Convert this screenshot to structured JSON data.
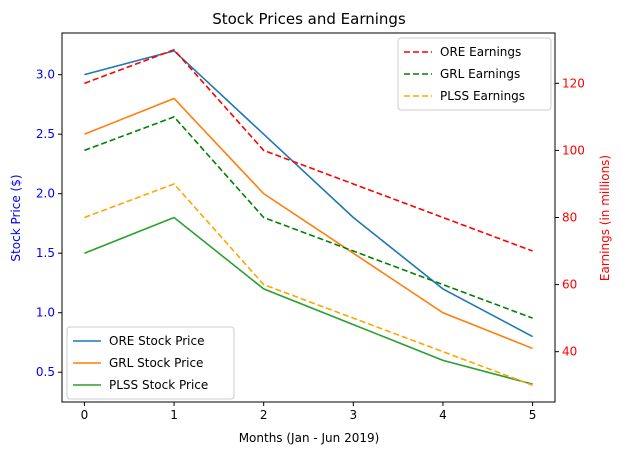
{
  "chart_data": {
    "type": "line",
    "title": "Stock Prices and Earnings",
    "xlabel": "Months (Jan - Jun 2019)",
    "ylabel": "Stock Price ($)",
    "y2label": "Earnings (in millions)",
    "x": [
      0,
      1,
      2,
      3,
      4,
      5
    ],
    "xlim": [
      -0.25,
      5.25
    ],
    "ylim": [
      0.25,
      3.35
    ],
    "y2lim": [
      25,
      135
    ],
    "yticks": [
      0.5,
      1.0,
      1.5,
      2.0,
      2.5,
      3.0
    ],
    "y2ticks": [
      40,
      60,
      80,
      100,
      120
    ],
    "xtick_labels": [
      "0",
      "1",
      "2",
      "3",
      "4",
      "5"
    ],
    "ytick_labels": [
      "0.5",
      "1.0",
      "1.5",
      "2.0",
      "2.5",
      "3.0"
    ],
    "y2tick_labels": [
      "40",
      "60",
      "80",
      "100",
      "120"
    ],
    "left_axis_color": "#0000ff",
    "right_axis_color": "#ff0000",
    "grid": false,
    "series": [
      {
        "name": "ORE Stock Price",
        "axis": "left",
        "style": "solid",
        "color": "#1f77b4",
        "values": [
          3.0,
          3.2,
          2.5,
          1.8,
          1.2,
          0.8
        ]
      },
      {
        "name": "GRL Stock Price",
        "axis": "left",
        "style": "solid",
        "color": "#ff7f0e",
        "values": [
          2.5,
          2.8,
          2.0,
          1.5,
          1.0,
          0.7
        ]
      },
      {
        "name": "PLSS Stock Price",
        "axis": "left",
        "style": "solid",
        "color": "#2ca02c",
        "values": [
          1.5,
          1.8,
          1.2,
          0.9,
          0.6,
          0.4
        ]
      },
      {
        "name": "ORE Earnings",
        "axis": "right",
        "style": "dashed",
        "color": "#ff0000",
        "values": [
          120,
          130,
          100,
          90,
          80,
          70
        ]
      },
      {
        "name": "GRL Earnings",
        "axis": "right",
        "style": "dashed",
        "color": "#008000",
        "values": [
          100,
          110,
          80,
          70,
          60,
          50
        ]
      },
      {
        "name": "PLSS Earnings",
        "axis": "right",
        "style": "dashed",
        "color": "#ffa500",
        "values": [
          80,
          90,
          60,
          50,
          40,
          30
        ]
      }
    ],
    "legends": [
      {
        "placement": "lower-left",
        "entries": [
          "ORE Stock Price",
          "GRL Stock Price",
          "PLSS Stock Price"
        ]
      },
      {
        "placement": "upper-right",
        "entries": [
          "ORE Earnings",
          "GRL Earnings",
          "PLSS Earnings"
        ]
      }
    ]
  }
}
